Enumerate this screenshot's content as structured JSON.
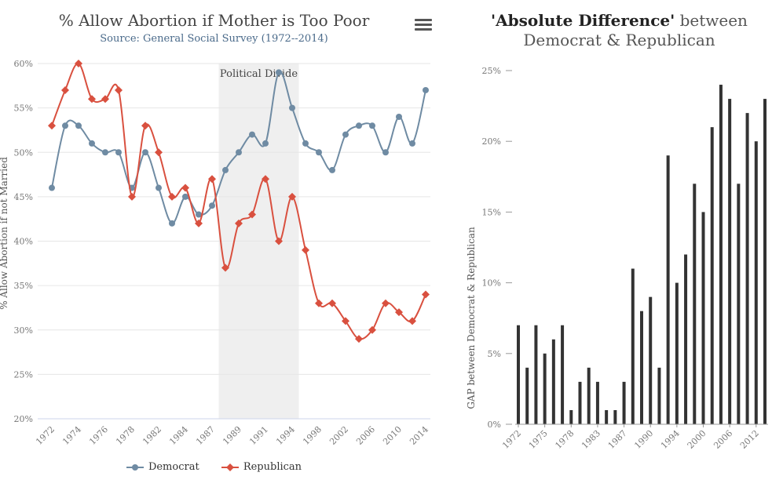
{
  "menu": {
    "icon": "hamburger-menu-icon"
  },
  "chart_data": [
    {
      "type": "line",
      "title": "% Allow Abortion if Mother is Too Poor",
      "subtitle": "Source: General Social Survey (1972--2014)",
      "xlabel": "",
      "ylabel": "% Allow Abortion if not Married",
      "ylim": [
        20,
        60
      ],
      "yticks": [
        "20%",
        "25%",
        "30%",
        "35%",
        "40%",
        "45%",
        "50%",
        "55%",
        "60%"
      ],
      "categories": [
        "1972",
        "1973",
        "1974",
        "1975",
        "1976",
        "1977",
        "1978",
        "1980",
        "1982",
        "1983",
        "1984",
        "1985",
        "1987",
        "1988",
        "1989",
        "1990",
        "1991",
        "1993",
        "1994",
        "1996",
        "1998",
        "2000",
        "2002",
        "2004",
        "2006",
        "2008",
        "2010",
        "2012",
        "2014"
      ],
      "xtick_labels": [
        "1972",
        "1974",
        "1976",
        "1978",
        "1982",
        "1984",
        "1987",
        "1989",
        "1991",
        "1994",
        "1998",
        "2002",
        "2006",
        "2010",
        "2014"
      ],
      "series": [
        {
          "name": "Democrat",
          "color": "#6f8ba3",
          "marker": "circle",
          "values": [
            46,
            53,
            53,
            51,
            50,
            50,
            46,
            50,
            46,
            42,
            45,
            43,
            44,
            48,
            50,
            52,
            51,
            59,
            55,
            51,
            50,
            48,
            52,
            53,
            53,
            50,
            54,
            51,
            57
          ]
        },
        {
          "name": "Republican",
          "color": "#d9503f",
          "marker": "diamond",
          "values": [
            53,
            57,
            60,
            56,
            56,
            57,
            45,
            53,
            50,
            45,
            46,
            42,
            47,
            37,
            42,
            43,
            47,
            40,
            45,
            39,
            33,
            33,
            31,
            29,
            30,
            33,
            32,
            31,
            34
          ]
        }
      ],
      "band": {
        "label": "Political Divide",
        "from_index": 13,
        "to_index": 19,
        "color": "#efefef"
      },
      "legend": "bottom-center",
      "grid": true
    },
    {
      "type": "bar",
      "title_bold": "'Absolute Difference'",
      "title_rest_1": " between",
      "title_line2": "Democrat & Republican",
      "xlabel": "",
      "ylabel": "GAP between Democrat & Republican",
      "ylim": [
        0,
        25
      ],
      "yticks": [
        "0%",
        "5%",
        "10%",
        "15%",
        "20%",
        "25%"
      ],
      "categories": [
        "1972",
        "1973",
        "1974",
        "1975",
        "1976",
        "1977",
        "1978",
        "1980",
        "1982",
        "1983",
        "1984",
        "1985",
        "1987",
        "1988",
        "1989",
        "1990",
        "1991",
        "1993",
        "1994",
        "1996",
        "1998",
        "2000",
        "2002",
        "2004",
        "2006",
        "2008",
        "2010",
        "2012",
        "2014"
      ],
      "xtick_labels": [
        "1972",
        "1975",
        "1978",
        "1983",
        "1987",
        "1990",
        "1994",
        "2000",
        "2006",
        "2012"
      ],
      "values": [
        7,
        4,
        7,
        5,
        6,
        7,
        1,
        3,
        4,
        3,
        1,
        1,
        3,
        11,
        8,
        9,
        4,
        19,
        10,
        12,
        17,
        15,
        21,
        24,
        23,
        17,
        22,
        20,
        23
      ],
      "color": "#333333",
      "grid": false
    }
  ]
}
